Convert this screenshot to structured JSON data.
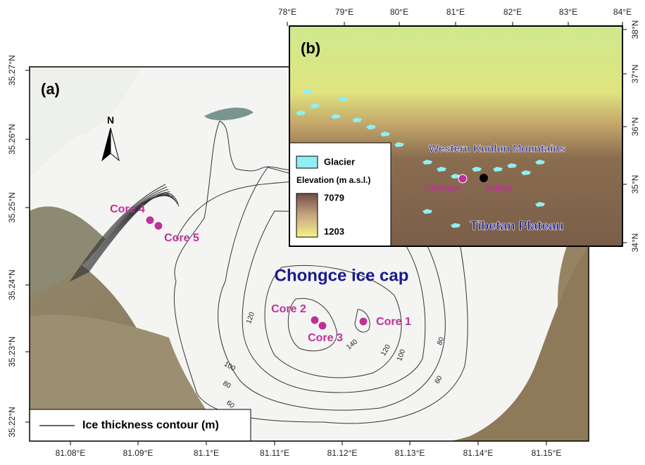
{
  "panel_a": {
    "label": "(a)",
    "title": "Chongce ice cap",
    "north": "N",
    "legend": "Ice thickness contour (m)",
    "x_ticks": [
      "81.08°E",
      "81.09°E",
      "81.1°E",
      "81.11°E",
      "81.12°E",
      "81.13°E",
      "81.14°E",
      "81.15°E"
    ],
    "y_ticks": [
      "35.27°N",
      "35.26°N",
      "35.25°N",
      "35.24°N",
      "35.23°N",
      "35.22°N"
    ],
    "cores": [
      "Core 1",
      "Core 2",
      "Core 3",
      "Core 4",
      "Core 5"
    ],
    "contour_labels": [
      "120",
      "140",
      "120",
      "100",
      "80",
      "100",
      "80",
      "60",
      "60"
    ]
  },
  "panel_b": {
    "label": "(b)",
    "x_ticks": [
      "78°E",
      "79°E",
      "80°E",
      "81°E",
      "82°E",
      "83°E",
      "84°E"
    ],
    "y_ticks": [
      "38°N",
      "37°N",
      "36°N",
      "35°N",
      "34°N"
    ],
    "legend": {
      "glacier": "Glacier",
      "elevation_title": "Elevation (m a.s.l.)",
      "max": "7079",
      "min": "1203"
    },
    "region": "Western Kunlun Mountains",
    "plateau": "Tibetan Plateau",
    "sites": [
      "Chongce",
      "Guliya"
    ]
  }
}
